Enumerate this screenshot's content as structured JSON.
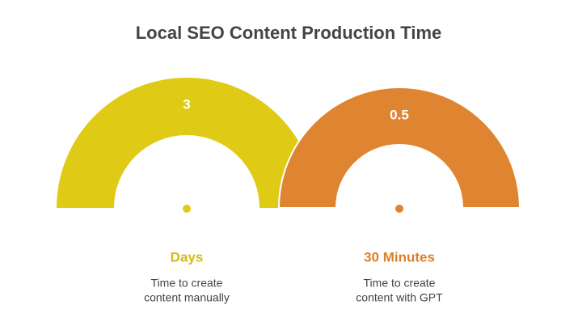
{
  "header": {
    "title": "Local SEO Content Production Time"
  },
  "items": [
    {
      "value": "3",
      "unit": "Days",
      "description": [
        "Time to create",
        "content manually"
      ],
      "color": "#dfcb16",
      "label_color": "#d6bb14"
    },
    {
      "value": "0.5",
      "unit": "30 Minutes",
      "description": [
        "Time to create",
        "content with GPT"
      ],
      "color": "#df8430",
      "label_color": "#dc7f2c"
    }
  ]
}
